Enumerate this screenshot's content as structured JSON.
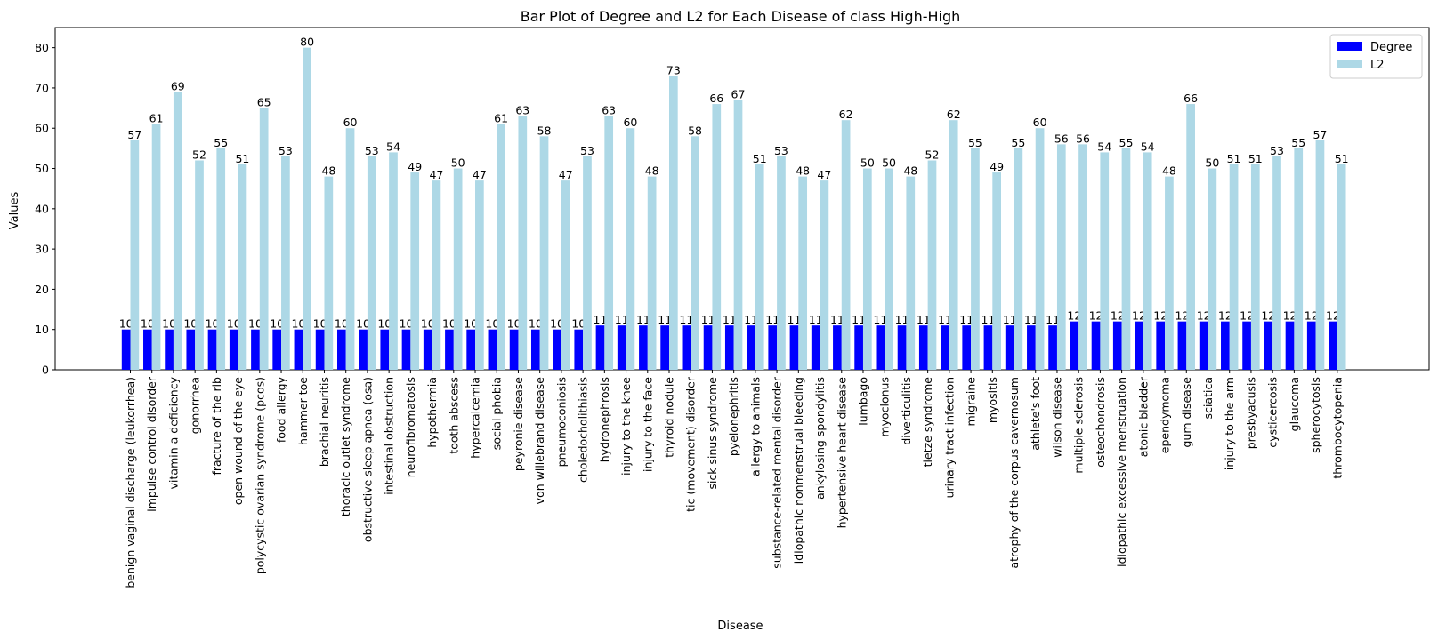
{
  "chart_data": {
    "type": "bar",
    "title": "Bar Plot of Degree and L2 for Each Disease of class High-High",
    "xlabel": "Disease",
    "ylabel": "Values",
    "ylim": [
      0,
      85
    ],
    "yticks": [
      0,
      10,
      20,
      30,
      40,
      50,
      60,
      70,
      80
    ],
    "grid": false,
    "legend": "top-right",
    "categories": [
      "benign vaginal discharge (leukorrhea)",
      "impulse control disorder",
      "vitamin a deficiency",
      "gonorrhea",
      "fracture of the rib",
      "open wound of the eye",
      "polycystic ovarian syndrome (pcos)",
      "food allergy",
      "hammer toe",
      "brachial neuritis",
      "thoracic outlet syndrome",
      "obstructive sleep apnea (osa)",
      "intestinal obstruction",
      "neurofibromatosis",
      "hypothermia",
      "tooth abscess",
      "hypercalcemia",
      "social phobia",
      "peyronie disease",
      "von willebrand disease",
      "pneumoconiosis",
      "choledocholithiasis",
      "hydronephrosis",
      "injury to the knee",
      "injury to the face",
      "thyroid nodule",
      "tic (movement) disorder",
      "sick sinus syndrome",
      "pyelonephritis",
      "allergy to animals",
      "substance-related mental disorder",
      "idiopathic nonmenstrual bleeding",
      "ankylosing spondylitis",
      "hypertensive heart disease",
      "lumbago",
      "myoclonus",
      "diverticulitis",
      "tietze syndrome",
      "urinary tract infection",
      "migraine",
      "myositis",
      "atrophy of the corpus cavernosum",
      "athlete's foot",
      "wilson disease",
      "multiple sclerosis",
      "osteochondrosis",
      "idiopathic excessive menstruation",
      "atonic bladder",
      "ependymoma",
      "gum disease",
      "sciatica",
      "injury to the arm",
      "presbyacusis",
      "cysticercosis",
      "glaucoma",
      "spherocytosis",
      "thrombocytopenia"
    ],
    "series": [
      {
        "name": "Degree",
        "color": "#0000ff",
        "values": [
          10,
          10,
          10,
          10,
          10,
          10,
          10,
          10,
          10,
          10,
          10,
          10,
          10,
          10,
          10,
          10,
          10,
          10,
          10,
          10,
          10,
          10,
          11,
          11,
          11,
          11,
          11,
          11,
          11,
          11,
          11,
          11,
          11,
          11,
          11,
          11,
          11,
          11,
          11,
          11,
          11,
          11,
          11,
          11,
          12,
          12,
          12,
          12,
          12,
          12,
          12,
          12,
          12,
          12,
          12,
          12,
          12
        ]
      },
      {
        "name": "L2",
        "color": "#add8e6",
        "values": [
          57,
          61,
          69,
          52,
          55,
          51,
          65,
          53,
          80,
          48,
          60,
          53,
          54,
          49,
          47,
          50,
          47,
          61,
          63,
          58,
          47,
          53,
          63,
          60,
          48,
          73,
          58,
          66,
          67,
          51,
          53,
          48,
          47,
          62,
          50,
          50,
          48,
          52,
          62,
          55,
          49,
          55,
          60,
          56,
          56,
          54,
          55,
          54,
          48,
          66,
          50,
          51,
          51,
          53,
          55,
          57,
          51
        ],
        "display_values": [
          57,
          61,
          69,
          52,
          55,
          51,
          65,
          53,
          80,
          48,
          60,
          53,
          54,
          49,
          47,
          50,
          47,
          61,
          63,
          58,
          47,
          53,
          63,
          60,
          48,
          73,
          58,
          66,
          67,
          51,
          53,
          48,
          47,
          62,
          50,
          50,
          48,
          52,
          62,
          55,
          49,
          55,
          60,
          56,
          56,
          54,
          55,
          54,
          48,
          66,
          50,
          51,
          51,
          53,
          55,
          57,
          51
        ]
      }
    ]
  }
}
